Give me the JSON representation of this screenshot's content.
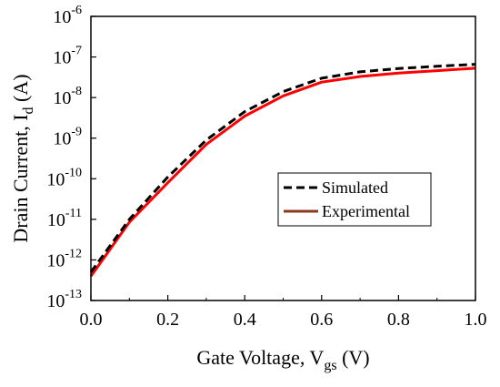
{
  "chart_data": {
    "type": "line",
    "xlabel": {
      "main": "Gate Voltage, V",
      "sub": "gs",
      "unit": " (V)"
    },
    "ylabel": {
      "main": "Drain Current, I",
      "sub": "d",
      "unit": " (A)"
    },
    "xlim": [
      0.0,
      1.0
    ],
    "ylim": [
      1e-13,
      1e-06
    ],
    "yscale": "log",
    "xticks": [
      "0.0",
      "0.2",
      "0.4",
      "0.6",
      "0.8",
      "1.0"
    ],
    "yticks": [
      {
        "base": "10",
        "exp": "-13",
        "value": 1e-13
      },
      {
        "base": "10",
        "exp": "-12",
        "value": 1e-12
      },
      {
        "base": "10",
        "exp": "-11",
        "value": 1e-11
      },
      {
        "base": "10",
        "exp": "-10",
        "value": 1e-10
      },
      {
        "base": "10",
        "exp": "-9",
        "value": 1e-09
      },
      {
        "base": "10",
        "exp": "-8",
        "value": 1e-08
      },
      {
        "base": "10",
        "exp": "-7",
        "value": 1e-07
      },
      {
        "base": "10",
        "exp": "-6",
        "value": 1e-06
      }
    ],
    "legend_position": "right-center",
    "series": [
      {
        "name": "Simulated",
        "color": "#000000",
        "style": "dashed",
        "x": [
          0.0,
          0.1,
          0.2,
          0.3,
          0.4,
          0.5,
          0.6,
          0.7,
          0.8,
          0.9,
          1.0
        ],
        "y": [
          5e-13,
          1e-11,
          1.1e-10,
          9e-10,
          4.5e-09,
          1.4e-08,
          3e-08,
          4.3e-08,
          5.2e-08,
          5.9e-08,
          6.6e-08
        ]
      },
      {
        "name": "Experimental",
        "color": "#ff0000",
        "legend_color": "#8b3a1e",
        "style": "solid",
        "x": [
          0.0,
          0.1,
          0.2,
          0.3,
          0.4,
          0.5,
          0.6,
          0.7,
          0.8,
          0.9,
          1.0
        ],
        "y": [
          4e-13,
          8.5e-12,
          8e-11,
          7e-10,
          3.5e-09,
          1.1e-08,
          2.4e-08,
          3.3e-08,
          4e-08,
          4.6e-08,
          5.3e-08
        ]
      }
    ]
  }
}
